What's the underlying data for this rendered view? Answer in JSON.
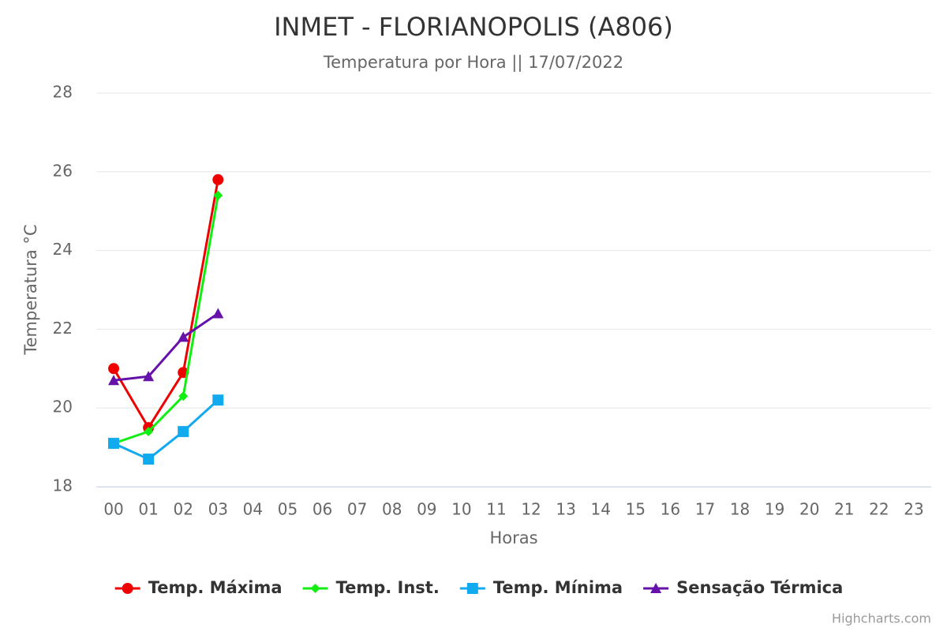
{
  "chart_data": {
    "type": "line",
    "title": "INMET - FLORIANOPOLIS (A806)",
    "subtitle": "Temperatura por Hora || 17/07/2022",
    "x_label": "Horas",
    "y_label": "Temperatura °C",
    "credits": "Highcharts.com",
    "categories": [
      "00",
      "01",
      "02",
      "03",
      "04",
      "05",
      "06",
      "07",
      "08",
      "09",
      "10",
      "11",
      "12",
      "13",
      "14",
      "15",
      "16",
      "17",
      "18",
      "19",
      "20",
      "21",
      "22",
      "23"
    ],
    "ylim": [
      18,
      28
    ],
    "yticks": [
      18,
      20,
      22,
      24,
      26,
      28
    ],
    "grid": true,
    "legend": "bottom",
    "series": [
      {
        "name": "Temp. Máxima",
        "color": "#ee0000",
        "marker": "circle",
        "values": [
          21.0,
          19.5,
          20.9,
          25.8,
          null,
          null,
          null,
          null,
          null,
          null,
          null,
          null,
          null,
          null,
          null,
          null,
          null,
          null,
          null,
          null,
          null,
          null,
          null,
          null
        ]
      },
      {
        "name": "Temp. Inst.",
        "color": "#11ee11",
        "marker": "diamond",
        "values": [
          19.1,
          19.4,
          20.3,
          25.4,
          null,
          null,
          null,
          null,
          null,
          null,
          null,
          null,
          null,
          null,
          null,
          null,
          null,
          null,
          null,
          null,
          null,
          null,
          null,
          null
        ]
      },
      {
        "name": "Temp. Mínima",
        "color": "#11aaee",
        "marker": "square",
        "values": [
          19.1,
          18.7,
          19.4,
          20.2,
          null,
          null,
          null,
          null,
          null,
          null,
          null,
          null,
          null,
          null,
          null,
          null,
          null,
          null,
          null,
          null,
          null,
          null,
          null,
          null
        ]
      },
      {
        "name": "Sensação Térmica",
        "color": "#6611aa",
        "marker": "triangle",
        "values": [
          20.7,
          20.8,
          21.8,
          22.4,
          null,
          null,
          null,
          null,
          null,
          null,
          null,
          null,
          null,
          null,
          null,
          null,
          null,
          null,
          null,
          null,
          null,
          null,
          null,
          null
        ]
      }
    ]
  }
}
